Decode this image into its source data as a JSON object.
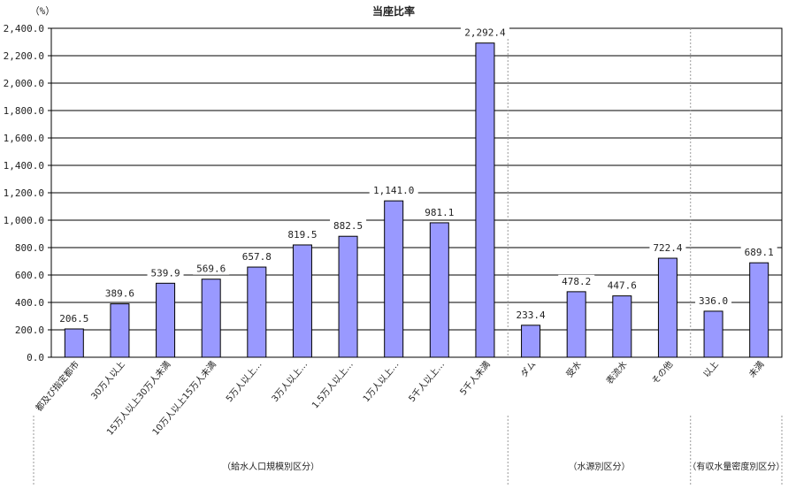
{
  "chart_data": {
    "type": "bar",
    "title": "当座比率",
    "ylabel": "（%）",
    "ylim": [
      0,
      2400
    ],
    "yticks": [
      "0.0",
      "200.0",
      "400.0",
      "600.0",
      "800.0",
      "1,000.0",
      "1,200.0",
      "1,400.0",
      "1,600.0",
      "1,800.0",
      "2,000.0",
      "2,200.0",
      "2,400.0"
    ],
    "grid": true,
    "categories": [
      "都及び指定都市",
      "30万人以上",
      "15万人以上30万人未満",
      "10万人以上15万人未満",
      "5万人以上…",
      "3万人以上…",
      "1.5万人以上…",
      "1万人以上…",
      "5千人以上…",
      "5千人未満",
      "ダム",
      "受水",
      "表流水",
      "その他",
      "以上",
      "未満"
    ],
    "values": [
      206.5,
      389.6,
      539.9,
      569.6,
      657.8,
      819.5,
      882.5,
      1141.0,
      981.1,
      2292.4,
      233.4,
      478.2,
      447.6,
      722.4,
      336.0,
      689.1
    ],
    "value_labels": [
      "206.5",
      "389.6",
      "539.9",
      "569.6",
      "657.8",
      "819.5",
      "882.5",
      "1,141.0",
      "981.1",
      "2,292.4",
      "233.4",
      "478.2",
      "447.6",
      "722.4",
      "336.0",
      "689.1"
    ],
    "groups": [
      {
        "label": "（給水人口規模別区分）",
        "start": 0,
        "end": 9
      },
      {
        "label": "（水源別区分）",
        "start": 10,
        "end": 13
      },
      {
        "label": "（有収水量密度別区分）",
        "start": 14,
        "end": 15
      }
    ],
    "colors": {
      "bar": "#9999ff",
      "bar_stroke": "#000000",
      "grid": "#000000"
    }
  }
}
